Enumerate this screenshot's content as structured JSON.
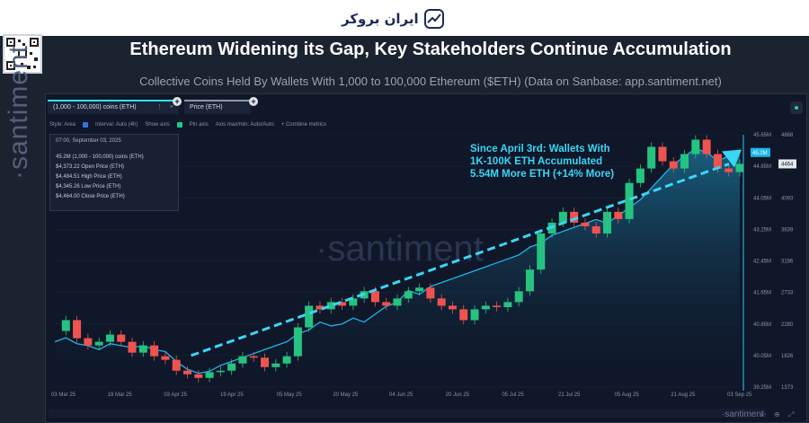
{
  "header": {
    "brand_text": "ایران بروکر",
    "title": "Ethereum Widening its Gap, Key Stakeholders Continue Accumulation",
    "subtitle": "Collective Coins Held By Wallets With 1,000 to 100,000 Ethereum ($ETH) (Data on Sanbase: app.santiment.net)"
  },
  "tabs": [
    {
      "label": "(1,000 - 100,000) coins (ETH)"
    },
    {
      "label": "Price (ETH)"
    }
  ],
  "toolbar": {
    "style_label": "Style: Area",
    "interval_label": "Interval: Auto (4h)",
    "show_axis_label": "Show axis",
    "pin_axis_label": "Pin axis",
    "axis_minmax_label": "Axis max/min: Auto/Auto",
    "combine_label": "+ Combine metrics"
  },
  "tooltip": {
    "date": "07:00, September 03, 2025",
    "rows": [
      "45.2M (1,000 - 100,000) coins (ETH)",
      "$4,373.22 Open Price (ETH)",
      "$4,484.51 High Price (ETH)",
      "$4,345.26 Low Price (ETH)",
      "$4,464.00 Close Price (ETH)"
    ]
  },
  "watermarks": {
    "center": "·santiment",
    "vertical": "·santiment",
    "corner": "·santiment·"
  },
  "colors": {
    "background": "#0f1729",
    "holdings_line": "#1fb6e8",
    "holdings_area": "#1a6a8c",
    "candle_up": "#26c281",
    "candle_down": "#ef5350",
    "trend_arrow": "#3ad6f5",
    "annotation_text": "#3ad6f5"
  },
  "chart_data": {
    "type": "area",
    "annotation": [
      "Since April 3rd: Wallets With",
      "1K-100K ETH Accumulated",
      "5.54M More ETH (+14% More)"
    ],
    "x_tick_labels": [
      "03 Mar 25",
      "19 Mar 25",
      "03 Apr 25",
      "19 Apr 25",
      "05 May 25",
      "20 May 25",
      "04 Jun 25",
      "20 Jun 25",
      "05 Jul 25",
      "21 Jul 25",
      "05 Aug 25",
      "21 Aug 25",
      "03 Sep 25"
    ],
    "y_left_label_ticks": [
      "45.65M",
      "44.85M",
      "44.05M",
      "43.25M",
      "42.45M",
      "41.65M",
      "40.85M",
      "40.05M",
      "39.25M"
    ],
    "y_right_label_ticks": [
      "4868",
      "4346",
      "4093",
      "3639",
      "3186",
      "2733",
      "2280",
      "1826",
      "1373"
    ],
    "y_left_current_label": "45.2M",
    "y_right_current_label": "4464",
    "ylim_holdings": [
      39.25,
      45.65
    ],
    "ylim_price": [
      1373,
      4868
    ],
    "series": [
      {
        "name": "(1,000 - 100,000) coins (ETH)",
        "unit": "M ETH",
        "x": [
          0,
          3,
          6,
          9,
          12,
          15,
          18,
          21,
          24,
          27,
          30,
          33,
          36,
          39,
          42,
          45,
          48,
          51,
          54,
          57,
          60,
          63,
          66,
          69,
          72,
          75,
          78,
          81,
          84,
          87,
          90,
          93,
          96,
          99,
          102,
          105,
          108,
          111,
          114,
          117,
          120,
          123,
          126,
          129,
          132,
          135,
          138,
          141,
          144,
          147,
          150,
          153,
          156,
          159,
          162,
          165,
          168,
          171,
          174,
          177,
          180,
          183,
          186
        ],
        "values": [
          40.4,
          40.5,
          40.35,
          40.3,
          40.2,
          40.35,
          40.3,
          40.25,
          40.3,
          40.2,
          40.15,
          39.9,
          39.7,
          39.6,
          39.65,
          39.8,
          39.9,
          40.0,
          40.1,
          40.2,
          40.3,
          40.4,
          40.6,
          40.7,
          40.9,
          40.8,
          40.85,
          41.0,
          40.9,
          41.1,
          41.3,
          41.4,
          41.7,
          41.6,
          41.8,
          41.9,
          42.0,
          42.1,
          42.2,
          42.3,
          42.4,
          42.5,
          42.6,
          42.8,
          42.9,
          43.1,
          43.2,
          43.3,
          43.4,
          43.5,
          43.4,
          43.6,
          43.8,
          44.0,
          44.3,
          44.6,
          44.9,
          45.1,
          45.3,
          45.2,
          45.0,
          45.1,
          45.2
        ]
      },
      {
        "name": "Price (ETH)",
        "unit": "USD",
        "x": [
          0,
          3,
          6,
          9,
          12,
          15,
          18,
          21,
          24,
          27,
          30,
          33,
          36,
          39,
          42,
          45,
          48,
          51,
          54,
          57,
          60,
          63,
          66,
          69,
          72,
          75,
          78,
          81,
          84,
          87,
          90,
          93,
          96,
          99,
          102,
          105,
          108,
          111,
          114,
          117,
          120,
          123,
          126,
          129,
          132,
          135,
          138,
          141,
          144,
          147,
          150,
          153,
          156,
          159,
          162,
          165,
          168,
          171,
          174,
          177,
          180,
          183,
          186
        ],
        "values": [
          2150,
          2300,
          2050,
          1950,
          2000,
          2100,
          2000,
          1850,
          1950,
          1800,
          1750,
          1600,
          1550,
          1500,
          1580,
          1600,
          1700,
          1800,
          1780,
          1650,
          1700,
          1800,
          2200,
          2500,
          2450,
          2550,
          2500,
          2600,
          2700,
          2550,
          2500,
          2600,
          2700,
          2750,
          2600,
          2500,
          2450,
          2300,
          2450,
          2500,
          2480,
          2550,
          2700,
          3000,
          3500,
          3650,
          3800,
          3650,
          3600,
          3500,
          3800,
          3700,
          4200,
          4400,
          4700,
          4500,
          4400,
          4600,
          4800,
          4600,
          4400,
          4350,
          4464
        ]
      }
    ],
    "trendline": {
      "x": [
        37,
        186
      ],
      "y_holdings": [
        40.05,
        45.0
      ]
    }
  }
}
